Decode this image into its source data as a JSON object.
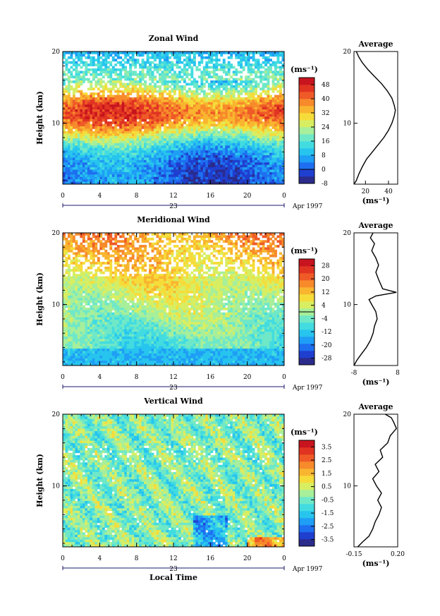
{
  "x_axis": {
    "label": "Local Time",
    "ticks": [
      "0",
      "4",
      "8",
      "12",
      "16",
      "20",
      "0"
    ],
    "range": [
      0,
      24
    ],
    "date_day": "23",
    "date_label": "Apr 1997"
  },
  "y_axis": {
    "label": "Height (km)",
    "ticks": [
      "10",
      "20"
    ],
    "range": [
      1.5,
      20
    ]
  },
  "profile_title": "Average",
  "colorbar_unit": "(ms⁻¹)",
  "profile_unit": "(ms⁻¹)",
  "palette": [
    "#2b2b8c",
    "#1f3fcf",
    "#1e6ff0",
    "#1f9ef5",
    "#27c4ee",
    "#42dce0",
    "#6fe8c8",
    "#a7ef9a",
    "#d8ee62",
    "#f6dc3a",
    "#f9b52f",
    "#f78a2b",
    "#ef5a27",
    "#e03322",
    "#c8141e"
  ],
  "panels": [
    {
      "title": "Zonal Wind",
      "colorbar_ticks": [
        "-8",
        "0",
        "8",
        "16",
        "24",
        "32",
        "40",
        "48"
      ],
      "colorbar_range": [
        -8,
        52
      ],
      "profile_xticks": [
        "20",
        "40"
      ],
      "profile_xrange": [
        10,
        48
      ],
      "profile": [
        [
          10.0,
          1.5
        ],
        [
          12.0,
          2.0
        ],
        [
          14.5,
          3.0
        ],
        [
          17.5,
          4.0
        ],
        [
          21.0,
          5.0
        ],
        [
          26.0,
          6.0
        ],
        [
          31.0,
          7.0
        ],
        [
          36.0,
          8.0
        ],
        [
          40.0,
          9.0
        ],
        [
          43.0,
          10.0
        ],
        [
          45.0,
          11.0
        ],
        [
          46.0,
          11.8
        ],
        [
          45.0,
          12.5
        ],
        [
          43.0,
          13.5
        ],
        [
          39.0,
          14.5
        ],
        [
          34.0,
          15.5
        ],
        [
          28.0,
          16.5
        ],
        [
          22.0,
          17.5
        ],
        [
          17.0,
          18.5
        ],
        [
          14.0,
          19.3
        ],
        [
          12.0,
          20.0
        ]
      ]
    },
    {
      "title": "Meridional Wind",
      "colorbar_ticks": [
        "-28",
        "-20",
        "-12",
        "-4",
        "4",
        "12",
        "20",
        "28"
      ],
      "colorbar_range": [
        -32,
        32
      ],
      "profile_xticks": [
        "-8",
        "8"
      ],
      "profile_xrange": [
        -8,
        8
      ],
      "profile": [
        [
          -8.0,
          1.5
        ],
        [
          -7.0,
          2.2
        ],
        [
          -5.5,
          3.0
        ],
        [
          -3.5,
          4.0
        ],
        [
          -2.0,
          5.0
        ],
        [
          -1.0,
          6.0
        ],
        [
          -0.5,
          7.0
        ],
        [
          0.5,
          8.0
        ],
        [
          0.0,
          9.0
        ],
        [
          -1.5,
          10.0
        ],
        [
          -2.5,
          10.7
        ],
        [
          0.0,
          11.2
        ],
        [
          7.5,
          11.7
        ],
        [
          2.5,
          12.2
        ],
        [
          1.0,
          13.5
        ],
        [
          0.0,
          14.5
        ],
        [
          1.0,
          15.5
        ],
        [
          0.0,
          16.5
        ],
        [
          -1.5,
          17.5
        ],
        [
          -0.5,
          18.5
        ],
        [
          -2.0,
          19.3
        ],
        [
          -1.0,
          20.0
        ]
      ]
    },
    {
      "title": "Vertical Wind",
      "colorbar_ticks": [
        "-3.5",
        "-2.5",
        "-1.5",
        "-0.5",
        "0.5",
        "1.5",
        "2.5",
        "3.5"
      ],
      "colorbar_range": [
        -4,
        4
      ],
      "profile_xticks": [
        "-0.15",
        "0.20"
      ],
      "profile_xrange": [
        -0.15,
        0.2
      ],
      "profile": [
        [
          -0.12,
          1.5
        ],
        [
          -0.08,
          2.2
        ],
        [
          -0.03,
          3.0
        ],
        [
          0.0,
          4.0
        ],
        [
          0.02,
          5.0
        ],
        [
          0.05,
          6.0
        ],
        [
          0.07,
          7.0
        ],
        [
          0.04,
          8.0
        ],
        [
          0.07,
          9.0
        ],
        [
          0.03,
          10.0
        ],
        [
          0.0,
          11.0
        ],
        [
          0.05,
          12.0
        ],
        [
          0.02,
          13.0
        ],
        [
          0.08,
          14.0
        ],
        [
          0.06,
          15.0
        ],
        [
          0.12,
          16.0
        ],
        [
          0.14,
          17.0
        ],
        [
          0.19,
          18.0
        ],
        [
          0.17,
          18.8
        ],
        [
          0.15,
          19.5
        ],
        [
          0.1,
          20.0
        ]
      ]
    }
  ]
}
